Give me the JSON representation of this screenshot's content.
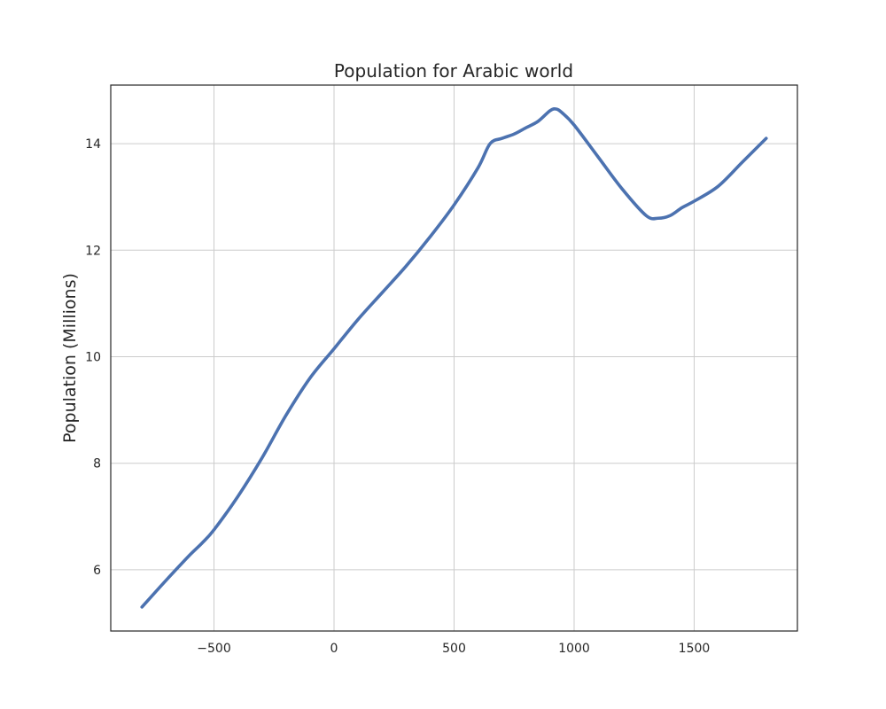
{
  "chart_data": {
    "type": "line",
    "title": "Population for Arabic world",
    "xlabel": "",
    "ylabel": "Population (Millions)",
    "xlim": [
      -930,
      1930
    ],
    "ylim": [
      4.85,
      15.1
    ],
    "xticks": [
      -500,
      0,
      500,
      1000,
      1500
    ],
    "xtick_labels": [
      "−500",
      "0",
      "500",
      "1000",
      "1500"
    ],
    "yticks": [
      6,
      8,
      10,
      12,
      14
    ],
    "ytick_labels": [
      "6",
      "8",
      "10",
      "12",
      "14"
    ],
    "grid": true,
    "series": [
      {
        "color": "#4c72b0",
        "x": [
          -800,
          -700,
          -600,
          -550,
          -500,
          -400,
          -300,
          -200,
          -100,
          0,
          100,
          200,
          300,
          400,
          500,
          600,
          650,
          700,
          750,
          800,
          850,
          900,
          925,
          950,
          1000,
          1100,
          1200,
          1300,
          1350,
          1400,
          1450,
          1500,
          1600,
          1700,
          1800
        ],
        "y": [
          5.3,
          5.8,
          6.28,
          6.5,
          6.75,
          7.38,
          8.1,
          8.9,
          9.6,
          10.15,
          10.7,
          11.2,
          11.7,
          12.25,
          12.85,
          13.55,
          14.0,
          14.1,
          14.18,
          14.3,
          14.42,
          14.62,
          14.65,
          14.58,
          14.35,
          13.75,
          13.15,
          12.65,
          12.6,
          12.65,
          12.8,
          12.92,
          13.2,
          13.65,
          14.1
        ]
      }
    ]
  }
}
